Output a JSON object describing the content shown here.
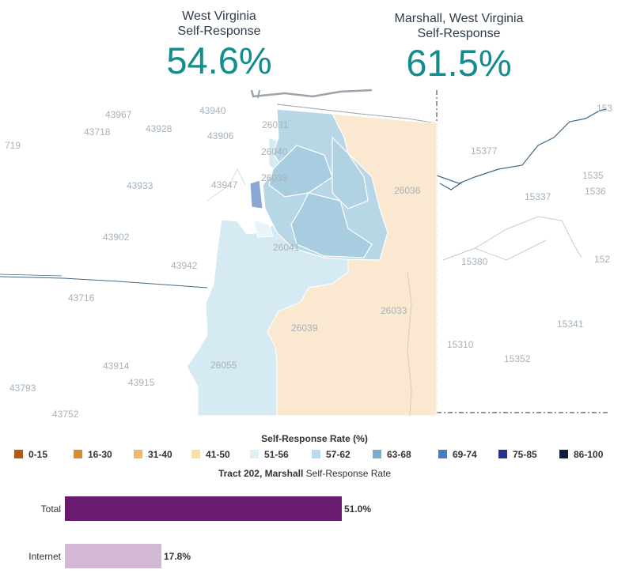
{
  "stats": {
    "state": {
      "label_line1": "West Virginia",
      "label_line2": "Self-Response",
      "value": "54.6%"
    },
    "county": {
      "label_line1": "Marshall, West Virginia",
      "label_line2": "Self-Response",
      "value": "61.5%"
    }
  },
  "map": {
    "zip_labels": [
      "43967",
      "43940",
      "43718",
      "43928",
      "43906",
      "719",
      "43933",
      "43947",
      "43902",
      "43942",
      "43716",
      "43914",
      "43915",
      "43793",
      "43752",
      "26031",
      "26040",
      "26038",
      "26036",
      "26041",
      "26033",
      "26039",
      "26055",
      "15377",
      "15337",
      "15380",
      "15310",
      "15341",
      "15352",
      "153",
      "1535",
      "1536",
      "152"
    ]
  },
  "legend": {
    "title": "Self-Response Rate (%)",
    "items": [
      {
        "label": "0-15",
        "color": "#b3591a"
      },
      {
        "label": "16-30",
        "color": "#e08a26"
      },
      {
        "label": "31-40",
        "color": "#f5b865"
      },
      {
        "label": "41-50",
        "color": "#f7e1a6"
      },
      {
        "label": "51-56",
        "color": "#dfeff6"
      },
      {
        "label": "57-62",
        "color": "#b7dcea"
      },
      {
        "label": "63-68",
        "color": "#7aaecf"
      },
      {
        "label": "69-74",
        "color": "#4a7bbb"
      },
      {
        "label": "75-85",
        "color": "#28328a"
      },
      {
        "label": "86-100",
        "color": "#0e1f3d"
      }
    ]
  },
  "tract_chart": {
    "title_bold": "Tract 202, Marshall",
    "title_rest": " Self-Response Rate",
    "bars": [
      {
        "label": "Total",
        "value": 51.0,
        "value_label": "51.0%",
        "color": "#6a1b6f"
      },
      {
        "label": "Internet",
        "value": 17.8,
        "value_label": "17.8%",
        "color": "#d3b8d6"
      }
    ]
  }
}
